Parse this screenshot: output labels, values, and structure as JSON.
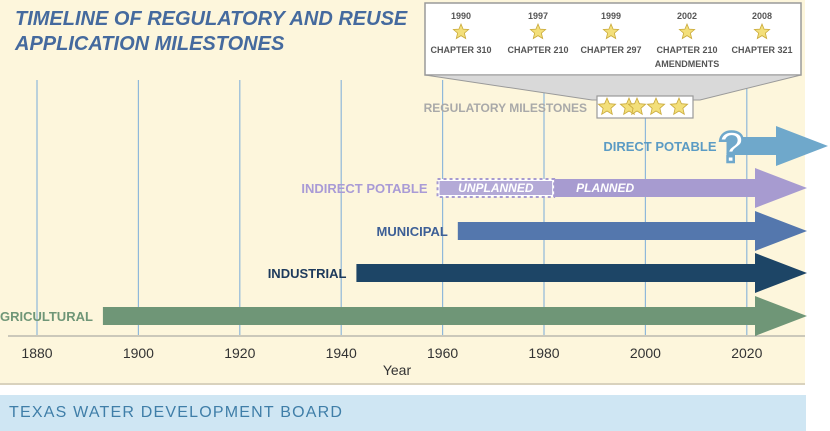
{
  "title": {
    "line1": "TIMELINE OF REGULATORY AND REUSE",
    "line2": "APPLICATION MILESTONES"
  },
  "footer": {
    "org": "TEXAS WATER DEVELOPMENT BOARD"
  },
  "milestones_panel": {
    "items": [
      {
        "year": "1990",
        "label": "CHAPTER 310",
        "label2": ""
      },
      {
        "year": "1997",
        "label": "CHAPTER 210",
        "label2": ""
      },
      {
        "year": "1999",
        "label": "CHAPTER 297",
        "label2": ""
      },
      {
        "year": "2002",
        "label": "CHAPTER 210",
        "label2": "AMENDMENTS"
      },
      {
        "year": "2008",
        "label": "CHAPTER 321",
        "label2": ""
      }
    ],
    "row_label": "REGULATORY MILESTONES",
    "star_years": [
      1990,
      1997,
      1999,
      2002,
      2008
    ]
  },
  "axis": {
    "label": "Year",
    "ticks": [
      "1880",
      "1900",
      "1920",
      "1940",
      "1960",
      "1980",
      "2000",
      "2020"
    ],
    "tick_years": [
      1880,
      1900,
      1920,
      1940,
      1960,
      1980,
      2000,
      2020
    ]
  },
  "applications": [
    {
      "name": "DIRECT POTABLE",
      "start": 2016,
      "color": "#6fa8cb",
      "label_color": "#5b9bc4",
      "question": "?"
    },
    {
      "name": "INDIRECT POTABLE",
      "start": 1959,
      "color": "#a79bd0",
      "label_color": "#a99bd6",
      "phases": [
        {
          "name": "UNPLANNED",
          "start": 1959,
          "end": 1982
        },
        {
          "name": "PLANNED",
          "start": 1982,
          "end": 2027
        }
      ]
    },
    {
      "name": "MUNICIPAL",
      "start": 1963,
      "color": "#5477ad",
      "label_color": "#3d5f96"
    },
    {
      "name": "INDUSTRIAL",
      "start": 1943,
      "color": "#1d4566",
      "label_color": "#1d3a5c"
    },
    {
      "name": "AGRICULTURAL",
      "start": 1893,
      "color": "#6f9677",
      "label_color": "#6f9677"
    }
  ]
}
